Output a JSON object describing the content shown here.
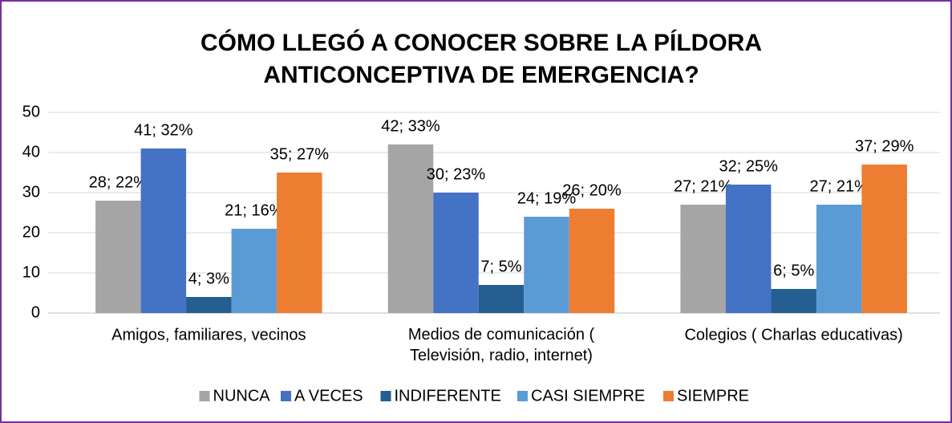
{
  "chart_data": {
    "type": "bar",
    "title": [
      "CÓMO LLEGÓ A CONOCER SOBRE LA PÍLDORA",
      "ANTICONCEPTIVA DE EMERGENCIA?"
    ],
    "categories": [
      "Amigos, familiares, vecinos",
      "Medios de comunicación (\nTelevisión, radio, internet)",
      "Colegios ( Charlas educativas)"
    ],
    "series": [
      {
        "name": "NUNCA",
        "color": "#a5a5a5",
        "values": [
          28,
          42,
          27
        ],
        "value_labels": [
          "28; 22%",
          "42; 33%",
          "27; 21%"
        ]
      },
      {
        "name": "A VECES",
        "color": "#4472c4",
        "values": [
          41,
          30,
          32
        ],
        "value_labels": [
          "41; 32%",
          "30; 23%",
          "32; 25%"
        ]
      },
      {
        "name": "INDIFERENTE",
        "color": "#255e91",
        "values": [
          4,
          7,
          6
        ],
        "value_labels": [
          "4; 3%",
          "7; 5%",
          "6; 5%"
        ]
      },
      {
        "name": "CASI SIEMPRE",
        "color": "#5b9bd5",
        "values": [
          21,
          24,
          27
        ],
        "value_labels": [
          "21; 16%",
          "24; 19%",
          "27; 21%"
        ]
      },
      {
        "name": "SIEMPRE",
        "color": "#ed7d31",
        "values": [
          35,
          26,
          37
        ],
        "value_labels": [
          "35; 27%",
          "26; 20%",
          "37; 29%"
        ]
      }
    ],
    "ylim": [
      0,
      50
    ],
    "yticks": [
      0,
      10,
      20,
      30,
      40,
      50
    ],
    "grid": true,
    "legend": "bottom"
  }
}
